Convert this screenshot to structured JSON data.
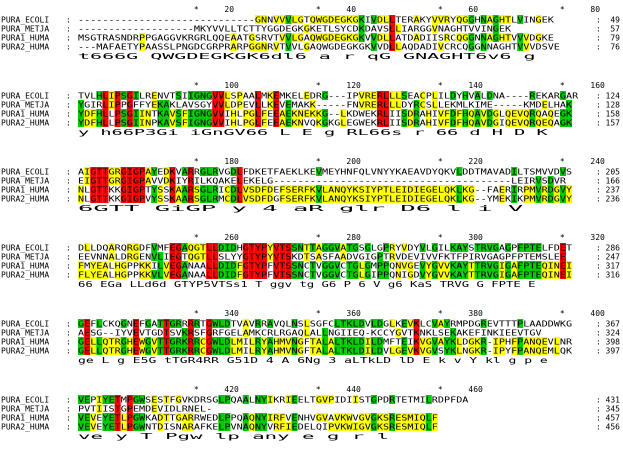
{
  "alignment": {
    "colors": {
      "identical": "#ff0000",
      "strong": "#00cc00",
      "weak": "#ffff00",
      "background": "#ffffff",
      "text": "#000000"
    },
    "blocks": [
      {
        "ruler": [
          {
            "col": 19,
            "label": "*"
          },
          {
            "col": 24,
            "label": "20"
          },
          {
            "col": 39,
            "label": "*"
          },
          {
            "col": 44,
            "label": "40"
          },
          {
            "col": 59,
            "label": "*"
          },
          {
            "col": 64,
            "label": "60"
          },
          {
            "col": 79,
            "label": "*"
          },
          {
            "col": 84,
            "label": "80"
          }
        ],
        "rows": [
          {
            "name": "PURA_ECOLI",
            "seq": "-----------------------------GNNVVVLGTQWGDEGKGKIVDLLTERAKYVVRYQGGHNAGHTLVINGEK",
            "end": "49"
          },
          {
            "name": "PURA_METJA",
            "seq": "-------------------MKYVVLLTCTTYGGDEGKGKETLSYCDKDAVSLLIARGGVNAGHTVVINGEK",
            "end": "57"
          },
          {
            "name": "PURA1_HUMA",
            "seq": "MSGTRASNDRPPGAGGVKRGRLQQEAATGSRVTVVLGAQWGDEGKGKVVDLLATDADIISRCQGGNNAGHTVVVDGKE",
            "end": "79"
          },
          {
            "name": "PURA2_HUMA",
            "seq": "---MAFAETYPAASSLPNGDCGRPRARPGGNRVTVVLGAQWGDEGKGKVVDLLAQDADIVCRCQGGNNAGHTVVVDSVE",
            "end": "76"
          }
        ],
        "consensus": "                                 t666G QWGDEGKGK6dl6   a   r qG GNAGHT6v6 g"
      },
      {
        "ruler": [
          {
            "col": 19,
            "label": "*"
          },
          {
            "col": 24,
            "label": "100"
          },
          {
            "col": 39,
            "label": "*"
          },
          {
            "col": 44,
            "label": "120"
          },
          {
            "col": 59,
            "label": "*"
          },
          {
            "col": 64,
            "label": "140"
          },
          {
            "col": 79,
            "label": "*"
          },
          {
            "col": 84,
            "label": "160"
          }
        ],
        "rows": [
          {
            "name": "PURA_ECOLI",
            "seq": "TVLHLIPSGILRENVTSIIGNGVVLSPAALMKEMKELEDRG---IPVRERLLLSEACPLILDYHVALDNA----REKARGAR",
            "end": "124"
          },
          {
            "name": "PURA_METJA",
            "seq": "YGIRLIPPGFFYEKAKLAVSGYVVLDPEVLLKEVEMAKK-----FNVRERLLLDYRCSLLEKMLKIME-----KMDELHAK",
            "end": "128"
          },
          {
            "name": "PURA1_HUMA",
            "seq": "YDFHLLPSGIINTKAVSFIGNGVVIHLPGLFEEAEKNEKKG--LKDWEKRLIISDRAHIVFDFHQAVDGLQEVQRQAQEGK",
            "end": "158"
          },
          {
            "name": "PURA2_HUMA",
            "seq": "YDFHLLPSGIINPKAVSFIGNGVVIHLPGLFEEAEKNVQKGKGLEGWEKRLIISDRAHIVFDFHQAVDGIQEVQRQEQAGK",
            "end": "157"
          }
        ],
        "consensus": "y h66P3Gi       iGnGV66      L   E    g        RL66s r  66 d H D            K"
      },
      {
        "ruler": [
          {
            "col": 19,
            "label": "*"
          },
          {
            "col": 24,
            "label": "180"
          },
          {
            "col": 39,
            "label": "*"
          },
          {
            "col": 44,
            "label": "200"
          },
          {
            "col": 59,
            "label": "*"
          },
          {
            "col": 64,
            "label": "220"
          },
          {
            "col": 79,
            "label": "*"
          },
          {
            "col": 84,
            "label": "240"
          }
        ],
        "rows": [
          {
            "name": "PURA_ECOLI",
            "seq": "AIGTTGRGIGPAYEDKVARRGLRVGDLFDKETFAEKLKEVMEYHNFQLVNYYKAEAVDYQKVLDDTMAVADILTSMVVDVS",
            "end": "205"
          },
          {
            "name": "PURA_METJA",
            "seq": "EIGTTGRGIGPAVVDKIYRILKQAKELEKELG---------------------------------------LEIRVSDVR",
            "end": "166"
          },
          {
            "name": "PURA1_HUMA",
            "seq": "NLGTTKKGIGPTYSSKAARSGLRICDLVSDFDEFSERFKVLANQYKSIYPTLEIDIEGELQKLKG--FAERIRPMVRDGVY",
            "end": "237"
          },
          {
            "name": "PURA2_HUMA",
            "seq": "NLGTTKKGIGPVYSSKAARSGLRMCDLVSDFDGFSERFKVLANQYKSIYPTLEIDIEGELQKLKG--YMEKIKPMVRDGVY",
            "end": "236"
          }
        ],
        "consensus": "  6GTT  GiGP y  4 aR glr  D6                            l    i          V"
      },
      {
        "ruler": [
          {
            "col": 19,
            "label": "*"
          },
          {
            "col": 24,
            "label": "260"
          },
          {
            "col": 39,
            "label": "*"
          },
          {
            "col": 44,
            "label": "280"
          },
          {
            "col": 59,
            "label": "*"
          },
          {
            "col": 64,
            "label": "300"
          },
          {
            "col": 79,
            "label": "*"
          },
          {
            "col": 84,
            "label": "320"
          }
        ],
        "rows": [
          {
            "name": "PURA_ECOLI",
            "seq": "DLLDQARQRGDFVMFEGAQGTLLDIDHGTYPYVTSSNTTAGGVATGSGLGPRYVDYVLGILKAYSTRVGAGPFPTELFDET",
            "end": "286"
          },
          {
            "name": "PURA_METJA",
            "seq": "EEVNNALDRGENVLIEGTQGTLLSLYYGTYPYVTSKDTSASFAADVGIGPTRVDEVIVVFKTFPIRVGAGPFPTEMSLEE",
            "end": "247"
          },
          {
            "name": "PURA1_HUMA",
            "seq": "FMYEALHGPPKKILVEGANAALLDIDFGTYPFVTSSNCTVGGVCTGLGMPPQNVGEVYGVVKAYTTRVGIGAFPTEQINEI",
            "end": "317"
          },
          {
            "name": "PURA2_HUMA",
            "seq": "FLYEALHGPPKKVLVEGANAALLDIDFGTYPFVTSSNCTVGGVCTGLGIPPQNIGDVYGVVKAYTTRVGIGAFPTEQINEI",
            "end": "316"
          }
        ],
        "consensus": "      66 EGa     LLd6d GTYP5VTSs1 T ggv tg G6 P  6 V g6 KaS TRVG G FPTE   E"
      },
      {
        "ruler": [
          {
            "col": 19,
            "label": "*"
          },
          {
            "col": 24,
            "label": "340"
          },
          {
            "col": 39,
            "label": "*"
          },
          {
            "col": 44,
            "label": "360"
          },
          {
            "col": 59,
            "label": "*"
          },
          {
            "col": 64,
            "label": "380"
          },
          {
            "col": 79,
            "label": "*"
          },
          {
            "col": 84,
            "label": "400"
          }
        ],
        "rows": [
          {
            "name": "PURA_ECOLI",
            "seq": "GEFLCKQGNEFGATTGRRRRTGWLDTVAVRRAVQLNSLSGFCLTKLDVLDGLKEVKLCVAYRMPDGREVTTTPLAADDWKG",
            "end": "367"
          },
          {
            "name": "PURA_METJA",
            "seq": "AESG--IYVEVTGDTSVKRSFGRFGELAMKCRLRGAQLALLNGIIEQ-KCCYGVTKNKLSEKAKEFINKIEEVTGV",
            "end": "324"
          },
          {
            "name": "PURA1_HUMA",
            "seq": "GELLQTRGHEWGVTTGRKRRCGWLDLMILRYAHMVNGFTALALTKLDILDMFTEIKVGVAYKLDGKR-IPHFPANQEVLNR",
            "end": "398"
          },
          {
            "name": "PURA2_HUMA",
            "seq": "GELLQTRGHEWGVTTGRKRRCGWLDLMILRYAHMVNGFTALALTKLDILDVLGEVKVGVSYKLNGKR-IPYFPANQEMLQK",
            "end": "397"
          }
        ],
        "consensus": "ge L  g E5G tTGR4RR G51D    4 A  6Ng 3  aLTkLD lD   E k  v Y kl g    p      e"
      },
      {
        "ruler": [
          {
            "col": 19,
            "label": "*"
          },
          {
            "col": 24,
            "label": "420"
          },
          {
            "col": 39,
            "label": "*"
          },
          {
            "col": 44,
            "label": "440"
          },
          {
            "col": 59,
            "label": "*"
          },
          {
            "col": 64,
            "label": "460"
          }
        ],
        "rows": [
          {
            "name": "PURA_ECOLI",
            "seq": "VEPIYETMPGWSESTFGVKDRSGLPQAALNYIKRIEELTGVPIDIISTGPDRTETMILRDPFDA",
            "end": "431"
          },
          {
            "name": "PURA_METJA",
            "seq": "PVTIISTGPEMDEVIDLRNEL-",
            "end": "345"
          },
          {
            "name": "PURA1_HUMA",
            "seq": "VEVEYETLPGWKADTTGARRWEDLPPQAQNYIRFVENHVGVAVKWVGVGKSRESMIQLF",
            "end": "457"
          },
          {
            "name": "PURA2_HUMA",
            "seq": "VEVEYETLPGWNTDISNARAFKELPVNAQNYVRFIEDELQIPVKWIGVGKSRESMIQLF",
            "end": "456"
          }
        ],
        "consensus": "ve y T Pgw           lp any   e         g    r    l"
      }
    ]
  }
}
